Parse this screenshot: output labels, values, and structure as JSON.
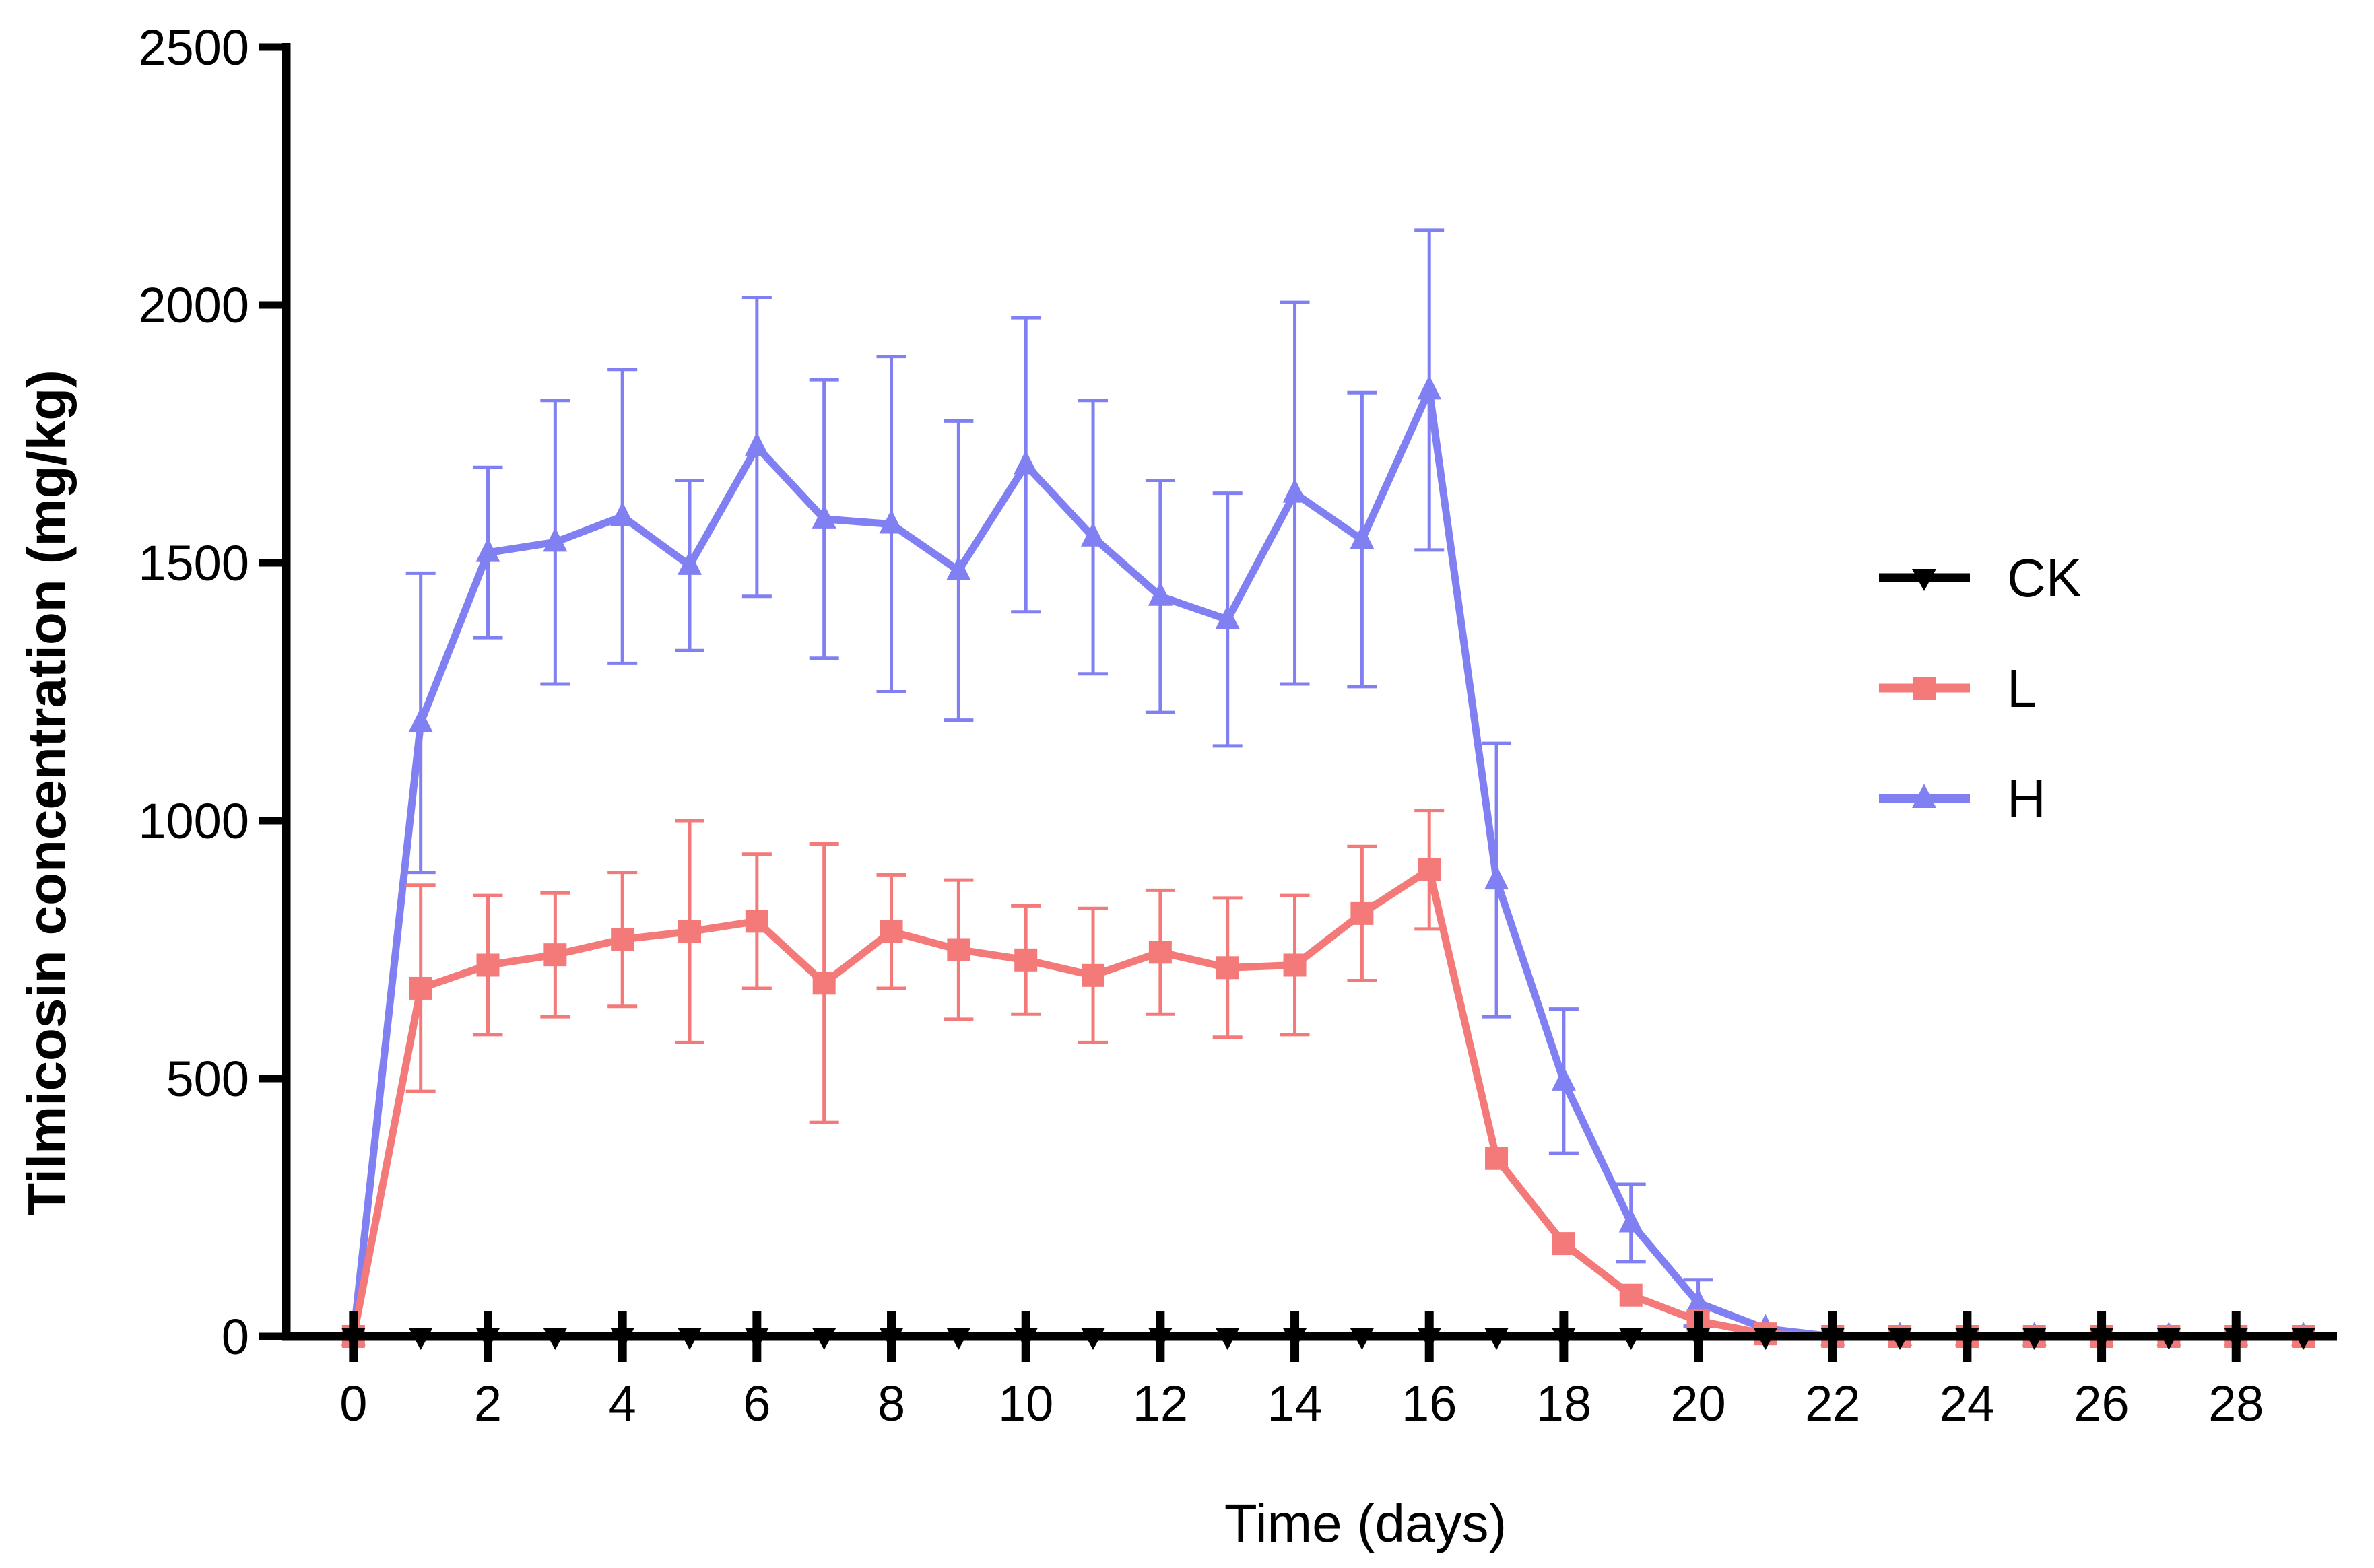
{
  "chart_data": {
    "type": "line",
    "title": "",
    "xlabel": "Time (days)",
    "ylabel": "Tilmicosin concentration (mg/kg)",
    "xlim": [
      -1,
      29.5
    ],
    "ylim": [
      0,
      2500
    ],
    "x_ticks": [
      0,
      2,
      4,
      6,
      8,
      10,
      12,
      14,
      16,
      18,
      20,
      22,
      24,
      26,
      28
    ],
    "x_tick_labels": [
      "0",
      "2",
      "4",
      "6",
      "8",
      "10",
      "12",
      "14",
      "16",
      "18",
      "20",
      "22",
      "24",
      "26",
      "28"
    ],
    "y_ticks": [
      0,
      500,
      1000,
      1500,
      2000,
      2500
    ],
    "y_tick_labels": [
      "0",
      "500",
      "1000",
      "1500",
      "2000",
      "2500"
    ],
    "grid": false,
    "legend_position": "right",
    "x": [
      0,
      1,
      2,
      3,
      4,
      5,
      6,
      7,
      8,
      9,
      10,
      11,
      12,
      13,
      14,
      15,
      16,
      17,
      18,
      19,
      20,
      21,
      22,
      23,
      24,
      25,
      26,
      27,
      28,
      29
    ],
    "series": [
      {
        "name": "CK",
        "marker": "triangle-down",
        "color": "#000000",
        "values": [
          0,
          0,
          0,
          0,
          0,
          0,
          0,
          0,
          0,
          0,
          0,
          0,
          0,
          0,
          0,
          0,
          0,
          0,
          0,
          0,
          0,
          0,
          0,
          0,
          0,
          0,
          0,
          0,
          0,
          0
        ],
        "errors": []
      },
      {
        "name": "L",
        "marker": "square",
        "color": "#f47a7a",
        "values": [
          0,
          675,
          720,
          740,
          770,
          785,
          805,
          685,
          785,
          750,
          730,
          700,
          745,
          715,
          720,
          820,
          905,
          345,
          180,
          80,
          30,
          5,
          0,
          0,
          0,
          0,
          0,
          0,
          0,
          0
        ],
        "errors": [
          0,
          200,
          135,
          120,
          130,
          215,
          130,
          270,
          110,
          135,
          105,
          130,
          120,
          135,
          135,
          130,
          115,
          0,
          0,
          0,
          0,
          0,
          0,
          0,
          0,
          0,
          0,
          0,
          0,
          0
        ]
      },
      {
        "name": "H",
        "marker": "triangle-up",
        "color": "#8080f2",
        "values": [
          0,
          1190,
          1520,
          1540,
          1590,
          1495,
          1725,
          1585,
          1575,
          1485,
          1690,
          1550,
          1435,
          1390,
          1635,
          1545,
          1835,
          885,
          495,
          220,
          65,
          15,
          0,
          0,
          0,
          0,
          0,
          0,
          0,
          0
        ],
        "errors": [
          0,
          290,
          165,
          275,
          285,
          165,
          290,
          270,
          325,
          290,
          285,
          265,
          225,
          245,
          370,
          285,
          310,
          265,
          140,
          75,
          45,
          0,
          0,
          0,
          0,
          0,
          0,
          0,
          0,
          0
        ]
      }
    ]
  }
}
